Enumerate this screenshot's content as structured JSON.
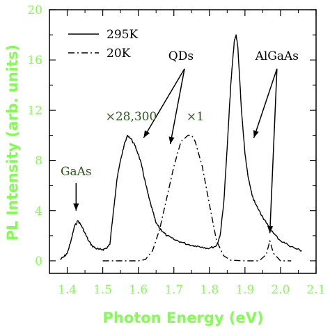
{
  "chart_data": {
    "type": "line",
    "xlabel": "Photon Energy (eV)",
    "ylabel": "PL Intensity (arb. units)",
    "xlim": [
      1.35,
      2.1
    ],
    "ylim": [
      -1,
      20
    ],
    "x_ticks": [
      "1.4",
      "1.5",
      "1.6",
      "1.7",
      "1.8",
      "1.9",
      "2.0",
      "2.1"
    ],
    "y_ticks": [
      "0",
      "4",
      "8",
      "12",
      "16",
      "20"
    ],
    "legend_position": "top-left",
    "series": [
      {
        "name": "295K",
        "style": "solid",
        "x": [
          1.38,
          1.39,
          1.4,
          1.41,
          1.42,
          1.43,
          1.44,
          1.45,
          1.46,
          1.47,
          1.48,
          1.49,
          1.5,
          1.51,
          1.52,
          1.53,
          1.54,
          1.55,
          1.56,
          1.57,
          1.58,
          1.59,
          1.6,
          1.61,
          1.62,
          1.63,
          1.64,
          1.65,
          1.66,
          1.67,
          1.68,
          1.7,
          1.72,
          1.74,
          1.76,
          1.78,
          1.8,
          1.82,
          1.83,
          1.84,
          1.85,
          1.86,
          1.87,
          1.875,
          1.88,
          1.89,
          1.9,
          1.91,
          1.92,
          1.93,
          1.94,
          1.95,
          1.96,
          1.98,
          2.0,
          2.02,
          2.04,
          2.06
        ],
        "y": [
          0.1,
          0.3,
          0.6,
          1.5,
          2.7,
          3.2,
          2.8,
          2.2,
          1.6,
          1.2,
          1.0,
          0.9,
          0.9,
          1.0,
          1.3,
          4.0,
          6.5,
          8.0,
          9.2,
          10.0,
          9.7,
          9.2,
          8.5,
          7.5,
          6.2,
          5.0,
          4.0,
          3.0,
          2.6,
          2.3,
          2.0,
          1.7,
          1.5,
          1.3,
          1.2,
          1.1,
          1.0,
          1.2,
          2.0,
          4.5,
          9.0,
          14.0,
          17.5,
          18.0,
          17.0,
          12.0,
          8.5,
          6.5,
          5.2,
          4.5,
          4.0,
          3.5,
          3.0,
          2.2,
          1.6,
          1.3,
          1.0,
          0.8
        ]
      },
      {
        "name": "20K",
        "style": "dash-dot",
        "x": [
          1.5,
          1.55,
          1.6,
          1.62,
          1.64,
          1.66,
          1.68,
          1.7,
          1.72,
          1.74,
          1.75,
          1.76,
          1.78,
          1.8,
          1.82,
          1.84,
          1.86,
          1.9,
          1.94,
          1.96,
          1.97,
          1.98,
          2.0,
          2.03
        ],
        "y": [
          0.0,
          0.0,
          0.0,
          0.1,
          0.8,
          2.5,
          5.0,
          7.5,
          9.5,
          10.0,
          10.0,
          9.5,
          7.5,
          4.5,
          1.6,
          0.4,
          0.05,
          0.0,
          0.0,
          0.5,
          1.6,
          0.6,
          0.0,
          0.0
        ]
      }
    ],
    "annotations": [
      {
        "text": "×28,300",
        "x": 1.58,
        "y": 11.2
      },
      {
        "text": "×1",
        "x": 1.76,
        "y": 11.2
      },
      {
        "text": "QDs",
        "x": 1.72,
        "y": 16.0
      },
      {
        "text": "AlGaAs",
        "x": 1.99,
        "y": 16.0
      },
      {
        "text": "GaAs",
        "x": 1.425,
        "y": 6.8
      }
    ],
    "arrows": [
      {
        "label": "GaAs",
        "from": [
          1.425,
          6.2
        ],
        "to": [
          1.425,
          4.0
        ]
      },
      {
        "label": "QDs",
        "from": [
          1.73,
          15.3
        ],
        "to": [
          1.615,
          9.8
        ]
      },
      {
        "label": "QDs",
        "from": [
          1.73,
          15.3
        ],
        "to": [
          1.69,
          9.3
        ]
      },
      {
        "label": "AlGaAs",
        "from": [
          1.99,
          15.3
        ],
        "to": [
          1.925,
          9.8
        ]
      },
      {
        "label": "AlGaAs",
        "from": [
          1.99,
          15.3
        ],
        "to": [
          1.97,
          2.2
        ]
      }
    ]
  }
}
